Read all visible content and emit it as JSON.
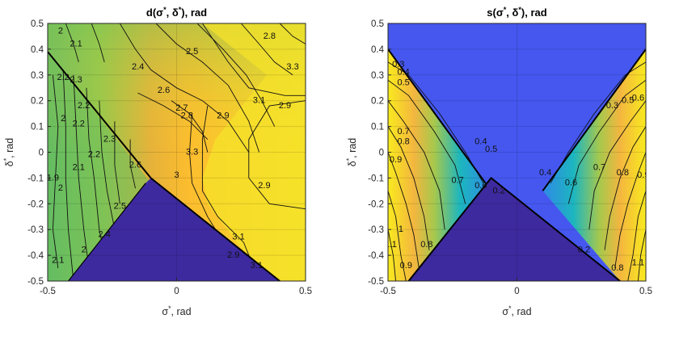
{
  "chart_data": [
    {
      "type": "contour",
      "title": "d(σ*, δ*), rad",
      "title_parts": [
        "d(σ",
        "*",
        ", δ",
        "*",
        "), rad"
      ],
      "xlabel": "σ*, rad",
      "xlabel_parts": [
        "σ",
        "*",
        ", rad"
      ],
      "ylabel": "δ*, rad",
      "ylabel_parts": [
        "δ",
        "*",
        ", rad"
      ],
      "xlim": [
        -0.5,
        0.5
      ],
      "ylim": [
        -0.5,
        0.5
      ],
      "xticks": [
        "-0.5",
        "0",
        "0.5"
      ],
      "yticks": [
        "-0.5",
        "-0.4",
        "-0.3",
        "-0.2",
        "-0.1",
        "0",
        "0.1",
        "0.2",
        "0.3",
        "0.4",
        "0.5"
      ],
      "grid": true,
      "colormap": [
        "#3e26a8",
        "#2e4ff5",
        "#1ca9df",
        "#2fbfa0",
        "#8cca4f",
        "#e2ba3c",
        "#fdc12c",
        "#f8e420"
      ],
      "undefined_region_color": "#3e2a9f",
      "contour_levels": [
        1.9,
        2,
        2.1,
        2.2,
        2.3,
        2.4,
        2.5,
        2.6,
        2.7,
        2.8,
        2.9,
        3,
        3.1,
        3.2,
        3.3
      ],
      "contour_labels": [
        {
          "text": "2",
          "x": -0.45,
          "y": 0.47
        },
        {
          "text": "2.1",
          "x": -0.39,
          "y": 0.42
        },
        {
          "text": "2.2",
          "x": -0.44,
          "y": 0.29
        },
        {
          "text": "2.3",
          "x": -0.39,
          "y": 0.28
        },
        {
          "text": "2.4",
          "x": -0.15,
          "y": 0.33
        },
        {
          "text": "2.5",
          "x": 0.06,
          "y": 0.39
        },
        {
          "text": "2.8",
          "x": 0.36,
          "y": 0.45
        },
        {
          "text": "2.6",
          "x": -0.05,
          "y": 0.24
        },
        {
          "text": "2.7",
          "x": 0.02,
          "y": 0.17
        },
        {
          "text": "2.9",
          "x": 0.18,
          "y": 0.14
        },
        {
          "text": "3.1",
          "x": 0.32,
          "y": 0.2
        },
        {
          "text": "3.3",
          "x": 0.45,
          "y": 0.33
        },
        {
          "text": "2.9",
          "x": 0.42,
          "y": 0.18
        },
        {
          "text": "2.8",
          "x": 0.04,
          "y": 0.14
        },
        {
          "text": "2.2",
          "x": -0.36,
          "y": 0.18
        },
        {
          "text": "2.2",
          "x": -0.38,
          "y": 0.11
        },
        {
          "text": "2",
          "x": -0.44,
          "y": 0.13
        },
        {
          "text": "2.1",
          "x": -0.38,
          "y": -0.06
        },
        {
          "text": "2.2",
          "x": -0.32,
          "y": -0.01
        },
        {
          "text": "2.3",
          "x": -0.26,
          "y": 0.05
        },
        {
          "text": "2.6",
          "x": -0.16,
          "y": -0.05
        },
        {
          "text": "1.9",
          "x": -0.48,
          "y": -0.1
        },
        {
          "text": "2",
          "x": -0.45,
          "y": -0.14
        },
        {
          "text": "2.5",
          "x": -0.22,
          "y": -0.21
        },
        {
          "text": "2.4",
          "x": -0.28,
          "y": -0.32
        },
        {
          "text": "2.1",
          "x": -0.46,
          "y": -0.42
        },
        {
          "text": "2",
          "x": -0.36,
          "y": -0.38
        },
        {
          "text": "3.3",
          "x": 0.06,
          "y": 0.0
        },
        {
          "text": "3",
          "x": 0.0,
          "y": -0.09
        },
        {
          "text": "2.9",
          "x": 0.34,
          "y": -0.13
        },
        {
          "text": "3.1",
          "x": 0.24,
          "y": -0.33
        },
        {
          "text": "2.9",
          "x": 0.22,
          "y": -0.4
        },
        {
          "text": "3.1",
          "x": 0.31,
          "y": -0.44
        }
      ]
    },
    {
      "type": "contour",
      "title": "s(σ*, δ*), rad",
      "title_parts": [
        "s(σ",
        "*",
        ", δ",
        "*",
        "), rad"
      ],
      "xlabel": "σ*, rad",
      "xlabel_parts": [
        "σ",
        "*",
        ", rad"
      ],
      "ylabel": "δ*, rad",
      "ylabel_parts": [
        "δ",
        "*",
        ", rad"
      ],
      "xlim": [
        -0.5,
        0.5
      ],
      "ylim": [
        -0.5,
        0.5
      ],
      "xticks": [
        "-0.5",
        "0",
        "0.5"
      ],
      "yticks": [
        "-0.5",
        "-0.4",
        "-0.3",
        "-0.2",
        "-0.1",
        "0",
        "0.1",
        "0.2",
        "0.3",
        "0.4",
        "0.5"
      ],
      "grid": true,
      "colormap": [
        "#4255ee",
        "#2f8fec",
        "#16b6ca",
        "#40c28a",
        "#a3c74d",
        "#f0b93e",
        "#fbd52a",
        "#f9f417"
      ],
      "background_region_color": "#4557ef",
      "undefined_region_color": "#3e2a9f",
      "contour_levels": [
        0.2,
        0.3,
        0.4,
        0.5,
        0.6,
        0.7,
        0.8,
        0.9,
        1,
        1.1
      ],
      "contour_labels": [
        {
          "text": "0.3",
          "x": -0.46,
          "y": 0.34
        },
        {
          "text": "0.4",
          "x": -0.44,
          "y": 0.31
        },
        {
          "text": "0.5",
          "x": -0.44,
          "y": 0.27
        },
        {
          "text": "0.7",
          "x": -0.44,
          "y": 0.08
        },
        {
          "text": "0.8",
          "x": -0.44,
          "y": 0.04
        },
        {
          "text": "0.9",
          "x": -0.47,
          "y": -0.03
        },
        {
          "text": "0.5",
          "x": -0.1,
          "y": 0.01
        },
        {
          "text": "0.4",
          "x": -0.14,
          "y": 0.04
        },
        {
          "text": "0.6",
          "x": -0.14,
          "y": -0.13
        },
        {
          "text": "0.7",
          "x": -0.23,
          "y": -0.11
        },
        {
          "text": "0.2",
          "x": -0.07,
          "y": -0.15
        },
        {
          "text": "1",
          "x": -0.45,
          "y": -0.3
        },
        {
          "text": "1.1",
          "x": -0.49,
          "y": -0.36
        },
        {
          "text": "0.9",
          "x": -0.43,
          "y": -0.44
        },
        {
          "text": "0.8",
          "x": -0.35,
          "y": -0.36
        },
        {
          "text": "0.3",
          "x": 0.37,
          "y": 0.18
        },
        {
          "text": "0.5",
          "x": 0.43,
          "y": 0.2
        },
        {
          "text": "0.6",
          "x": 0.47,
          "y": 0.21
        },
        {
          "text": "0.4",
          "x": 0.11,
          "y": -0.08
        },
        {
          "text": "0.6",
          "x": 0.21,
          "y": -0.12
        },
        {
          "text": "0.7",
          "x": 0.32,
          "y": -0.06
        },
        {
          "text": "0.8",
          "x": 0.41,
          "y": -0.08
        },
        {
          "text": "0.9",
          "x": 0.49,
          "y": -0.09
        },
        {
          "text": "0.2",
          "x": 0.26,
          "y": -0.38
        },
        {
          "text": "1.1",
          "x": 0.47,
          "y": -0.43
        },
        {
          "text": "0.8",
          "x": 0.39,
          "y": -0.45
        }
      ]
    }
  ]
}
